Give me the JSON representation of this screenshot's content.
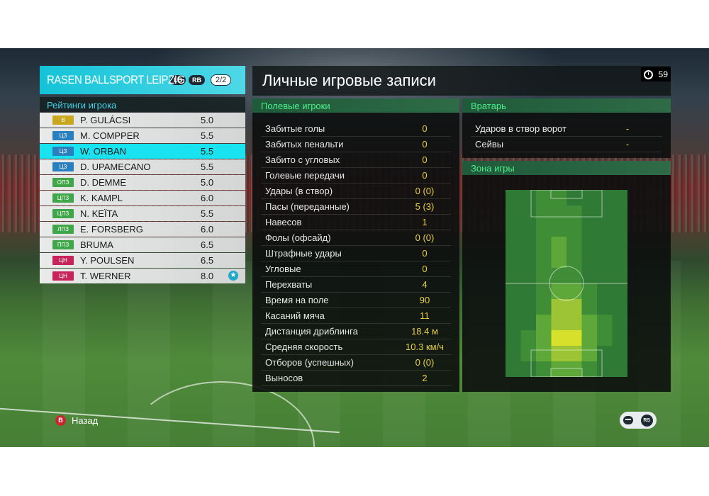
{
  "team": {
    "name": "RASEN BALLSPORT LEIPZIG",
    "lb": "LB",
    "rb": "RB",
    "page": "2/2"
  },
  "ratings_title": "Рейтинги игрока",
  "players": [
    {
      "pos": "В",
      "pos_color": "#c9a81f",
      "name": "P. GULÁCSI",
      "rating": "5.0"
    },
    {
      "pos": "ЦЗ",
      "pos_color": "#2a7fbf",
      "name": "M. COMPPER",
      "rating": "5.5"
    },
    {
      "pos": "ЦЗ",
      "pos_color": "#2a7fbf",
      "name": "W. ORBAN",
      "rating": "5.5",
      "selected": true
    },
    {
      "pos": "ЦЗ",
      "pos_color": "#2a7fbf",
      "name": "D. UPAMECANO",
      "rating": "5.5"
    },
    {
      "pos": "ОПЗ",
      "pos_color": "#3fa64a",
      "name": "D. DEMME",
      "rating": "5.0"
    },
    {
      "pos": "ЦПЗ",
      "pos_color": "#3fa64a",
      "name": "K. KAMPL",
      "rating": "6.0"
    },
    {
      "pos": "ЦПЗ",
      "pos_color": "#3fa64a",
      "name": "N. KEÏTA",
      "rating": "5.5"
    },
    {
      "pos": "ЛПЗ",
      "pos_color": "#3fa64a",
      "name": "E. FORSBERG",
      "rating": "6.0"
    },
    {
      "pos": "ППЗ",
      "pos_color": "#3fa64a",
      "name": "BRUMA",
      "rating": "6.5"
    },
    {
      "pos": "ЦН",
      "pos_color": "#c6245a",
      "name": "Y. POULSEN",
      "rating": "6.5"
    },
    {
      "pos": "ЦН",
      "pos_color": "#c6245a",
      "name": "T. WERNER",
      "rating": "8.0",
      "star": true
    }
  ],
  "title": "Личные игровые записи",
  "timer": "59",
  "field_players": {
    "header": "Полевые игроки",
    "stats": [
      {
        "label": "Забитые голы",
        "value": "0"
      },
      {
        "label": "Забитых пенальти",
        "value": "0"
      },
      {
        "label": "Забито с угловых",
        "value": "0"
      },
      {
        "label": "Голевые передачи",
        "value": "0"
      },
      {
        "label": "Удары (в створ)",
        "value": "0 (0)"
      },
      {
        "label": "Пасы (переданные)",
        "value": "5 (3)"
      },
      {
        "label": "Навесов",
        "value": "1"
      },
      {
        "label": "Фолы (офсайд)",
        "value": "0 (0)"
      },
      {
        "label": "Штрафные удары",
        "value": "0"
      },
      {
        "label": "Угловые",
        "value": "0"
      },
      {
        "label": "Перехваты",
        "value": "4"
      },
      {
        "label": "Время на поле",
        "value": "90"
      },
      {
        "label": "Касаний мяча",
        "value": "11"
      },
      {
        "label": "Дистанция дриблинга",
        "value": "18.4 м"
      },
      {
        "label": "Средняя скорость",
        "value": "10.3 км/ч"
      },
      {
        "label": "Отборов (успешных)",
        "value": "0 (0)"
      },
      {
        "label": "Выносов",
        "value": "2"
      }
    ]
  },
  "goalkeeper": {
    "header": "Вратарь",
    "stats": [
      {
        "label": "Ударов в створ ворот",
        "value": "-"
      },
      {
        "label": "Сейвы",
        "value": "-"
      }
    ]
  },
  "zone": {
    "header": "Зона игры",
    "cols": 8,
    "heat": [
      [
        0,
        0,
        1,
        1,
        0,
        0,
        0,
        0
      ],
      [
        0,
        0,
        1,
        1,
        1,
        0,
        0,
        0
      ],
      [
        0,
        0,
        1,
        1,
        1,
        0,
        0,
        0
      ],
      [
        0,
        0,
        1,
        2,
        1,
        0,
        0,
        0
      ],
      [
        0,
        0,
        1,
        2,
        1,
        0,
        0,
        0
      ],
      [
        0,
        0,
        1,
        1,
        1,
        0,
        0,
        0
      ],
      [
        0,
        0,
        1,
        2,
        2,
        1,
        0,
        0
      ],
      [
        0,
        0,
        1,
        3,
        3,
        1,
        0,
        0
      ],
      [
        0,
        0,
        2,
        3,
        3,
        2,
        1,
        0
      ],
      [
        0,
        1,
        2,
        4,
        4,
        2,
        1,
        0
      ],
      [
        0,
        1,
        2,
        3,
        3,
        2,
        0,
        0
      ],
      [
        0,
        0,
        1,
        2,
        2,
        1,
        0,
        0
      ]
    ],
    "colors": [
      "#2f7a35",
      "#3f8d37",
      "#5ea83a",
      "#9cc434",
      "#d7e02a"
    ]
  },
  "footer": {
    "back_button": "B",
    "back_label": "Назад",
    "rs": "RS"
  }
}
